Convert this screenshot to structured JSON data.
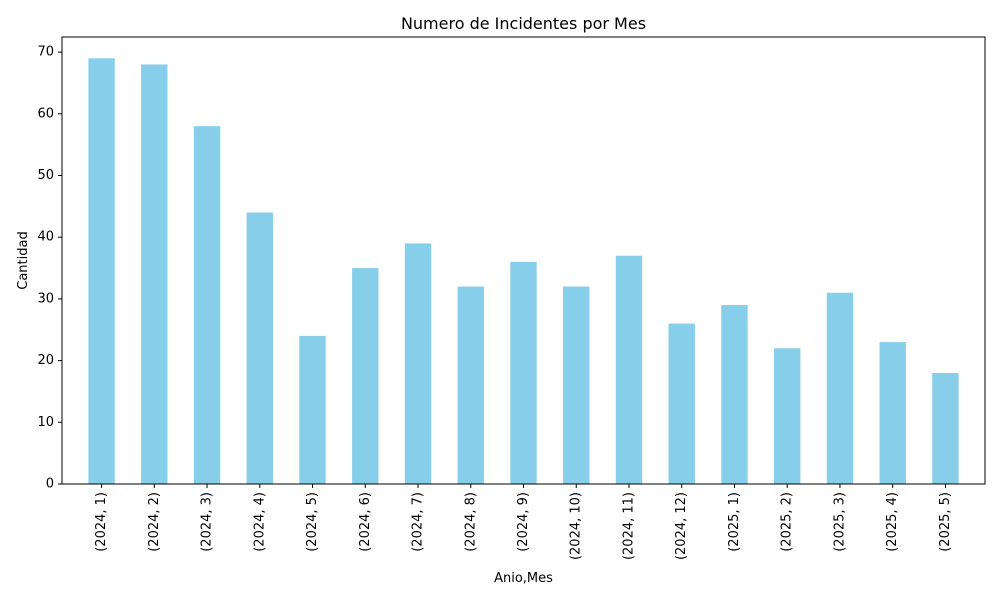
{
  "chart_data": {
    "type": "bar",
    "title": "Numero de Incidentes por Mes",
    "xlabel": "Anio,Mes",
    "ylabel": "Cantidad",
    "categories": [
      "(2024, 1)",
      "(2024, 2)",
      "(2024, 3)",
      "(2024, 4)",
      "(2024, 5)",
      "(2024, 6)",
      "(2024, 7)",
      "(2024, 8)",
      "(2024, 9)",
      "(2024, 10)",
      "(2024, 11)",
      "(2024, 12)",
      "(2025, 1)",
      "(2025, 2)",
      "(2025, 3)",
      "(2025, 4)",
      "(2025, 5)"
    ],
    "values": [
      69,
      68,
      58,
      44,
      24,
      35,
      39,
      32,
      36,
      32,
      37,
      26,
      29,
      22,
      31,
      23,
      18
    ],
    "ylim": [
      0,
      72.45
    ],
    "yticks": [
      0,
      10,
      20,
      30,
      40,
      50,
      60,
      70
    ],
    "grid": false,
    "legend": "none",
    "bar_color": "#87ceeb"
  }
}
